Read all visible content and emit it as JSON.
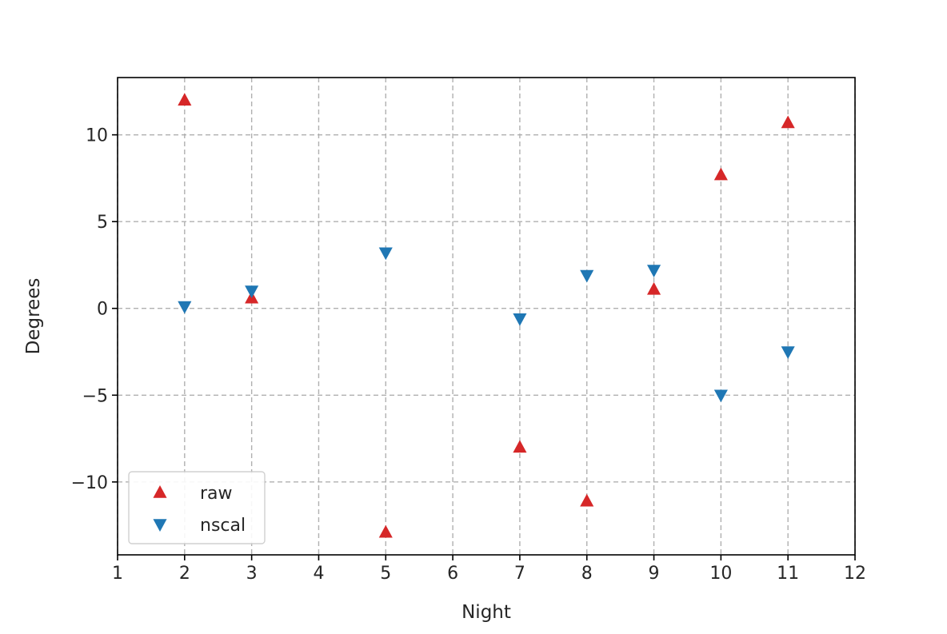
{
  "chart_data": {
    "type": "scatter",
    "title": "",
    "xlabel": "Night",
    "ylabel": "Degrees",
    "xlim": [
      1,
      12
    ],
    "ylim": [
      -14.2,
      13.3
    ],
    "xticks": [
      1,
      2,
      3,
      4,
      5,
      6,
      7,
      8,
      9,
      10,
      11,
      12
    ],
    "yticks": [
      -10,
      -5,
      0,
      5,
      10
    ],
    "ytick_labels": [
      "−10",
      "−5",
      "0",
      "5",
      "10"
    ],
    "grid": true,
    "legend_position": "lower-left",
    "series": [
      {
        "name": "raw",
        "marker": "triangle-up",
        "color": "#d62728",
        "x": [
          2,
          3,
          5,
          7,
          8,
          9,
          10,
          11
        ],
        "y": [
          12.0,
          0.6,
          -12.9,
          -8.0,
          -11.1,
          1.1,
          7.7,
          10.7
        ]
      },
      {
        "name": "nscal",
        "marker": "triangle-down",
        "color": "#1f77b4",
        "x": [
          2,
          3,
          5,
          7,
          8,
          9,
          10,
          11
        ],
        "y": [
          0.1,
          1.0,
          3.2,
          -0.6,
          1.9,
          2.2,
          -5.0,
          -2.5
        ]
      }
    ]
  }
}
